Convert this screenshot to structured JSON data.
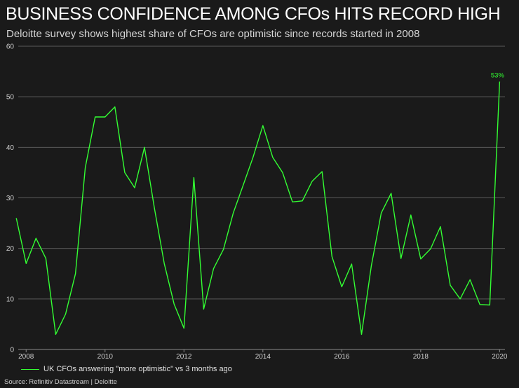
{
  "title": "BUSINESS CONFIDENCE AMONG CFOs HITS RECORD HIGH",
  "subtitle": "Deloitte survey shows highest share of CFOs are optimistic since records started in 2008",
  "legend_label": "UK CFOs answering \"more optimistic\" vs 3 months ago",
  "source": "Source: Refinitiv Datastream | Deloitte",
  "line_color": "#33ff33",
  "chart_data": {
    "type": "line",
    "title": "BUSINESS CONFIDENCE AMONG CFOs HITS RECORD HIGH",
    "xlabel": "",
    "ylabel": "",
    "xlim": [
      2007.8,
      2020.1
    ],
    "ylim": [
      0,
      60
    ],
    "yticks": [
      0,
      10,
      20,
      30,
      40,
      50,
      60
    ],
    "xticks": [
      2008,
      2010,
      2012,
      2014,
      2016,
      2018,
      2020
    ],
    "grid": "horizontal",
    "end_label": "53%",
    "series": [
      {
        "name": "UK CFOs answering \"more optimistic\" vs 3 months ago",
        "x": [
          2007.75,
          2008.0,
          2008.25,
          2008.5,
          2008.75,
          2009.0,
          2009.25,
          2009.5,
          2009.75,
          2010.0,
          2010.25,
          2010.5,
          2010.75,
          2011.0,
          2011.25,
          2011.5,
          2011.75,
          2012.0,
          2012.25,
          2012.5,
          2012.75,
          2013.0,
          2013.25,
          2013.5,
          2013.75,
          2014.0,
          2014.25,
          2014.5,
          2014.75,
          2015.0,
          2015.25,
          2015.5,
          2015.75,
          2016.0,
          2016.25,
          2016.5,
          2016.75,
          2017.0,
          2017.25,
          2017.5,
          2017.75,
          2018.0,
          2018.25,
          2018.5,
          2018.75,
          2019.0,
          2019.25,
          2019.5,
          2019.75,
          2020.0
        ],
        "values": [
          26,
          17,
          22,
          18,
          3,
          7,
          15,
          36,
          46,
          46,
          48,
          35,
          32,
          40,
          28,
          17,
          9,
          4.2,
          34,
          8,
          16,
          19.8,
          27,
          32.5,
          38,
          44.3,
          38,
          35,
          29.2,
          29.4,
          33.3,
          35.2,
          18.4,
          12.4,
          16.9,
          3,
          16.6,
          27,
          30.9,
          18,
          26.6,
          17.9,
          19.9,
          24.3,
          12.7,
          10,
          13.8,
          8.9,
          8.8,
          53
        ]
      }
    ]
  }
}
